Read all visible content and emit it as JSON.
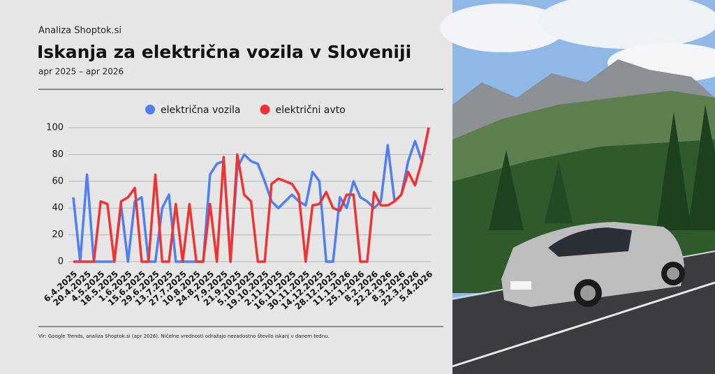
{
  "chart_data": {
    "type": "line",
    "brand": "Analiza Shoptok.si",
    "title": "Iskanja za električna vozila v Sloveniji",
    "subtitle": "apr 2025 – apr 2026",
    "footnote": "Vir: Google Trends, analiza Shoptok.si (apr 2026). Ničelne vrednosti odražajo nezadostno število iskanj v danem tednu.",
    "categories": [
      "6.4.2025",
      null,
      "20.4.2025",
      null,
      "4.5.2025",
      null,
      "18.5.2025",
      null,
      "1.6.2025",
      null,
      "15.6.2025",
      null,
      "29.6.2025",
      null,
      "13.7.2025",
      null,
      "27.7.2025",
      null,
      "10.8.2025",
      null,
      "24.8.2025",
      null,
      "7.9.2025",
      null,
      "21.9.2025",
      null,
      "5.10.2025",
      null,
      "19.10.2025",
      null,
      "2.11.2025",
      null,
      "16.11.2025",
      null,
      "30.11.2025",
      null,
      "14.12.2025",
      null,
      "28.12.2025",
      null,
      "11.1.2026",
      null,
      "25.1.2026",
      null,
      "8.2.2026",
      null,
      "22.2.2026",
      null,
      "8.3.2026",
      null,
      "22.3.2026",
      null,
      "5.4.2026"
    ],
    "series": [
      {
        "name": "električna vozila",
        "color": "#4f7ff0",
        "values": [
          48,
          0,
          65,
          0,
          0,
          0,
          0,
          42,
          0,
          45,
          48,
          0,
          0,
          40,
          50,
          0,
          0,
          0,
          0,
          0,
          65,
          73,
          75,
          0,
          70,
          80,
          75,
          73,
          60,
          45,
          40,
          45,
          50,
          45,
          42,
          67,
          60,
          0,
          0,
          48,
          40,
          60,
          48,
          45,
          40,
          45,
          87,
          45,
          50,
          75,
          90,
          75,
          100
        ]
      },
      {
        "name": "električni avto",
        "color": "#ee3333",
        "values": [
          0,
          0,
          0,
          0,
          45,
          43,
          0,
          45,
          48,
          55,
          0,
          0,
          65,
          0,
          0,
          43,
          0,
          43,
          0,
          0,
          43,
          0,
          78,
          0,
          80,
          50,
          45,
          0,
          0,
          58,
          62,
          60,
          58,
          50,
          0,
          42,
          43,
          52,
          40,
          38,
          50,
          50,
          0,
          0,
          52,
          42,
          42,
          45,
          50,
          67,
          57,
          75,
          100
        ]
      }
    ],
    "ylim": [
      0,
      100
    ],
    "yticks": [
      0,
      20,
      40,
      60,
      80,
      100
    ],
    "grid": true
  }
}
